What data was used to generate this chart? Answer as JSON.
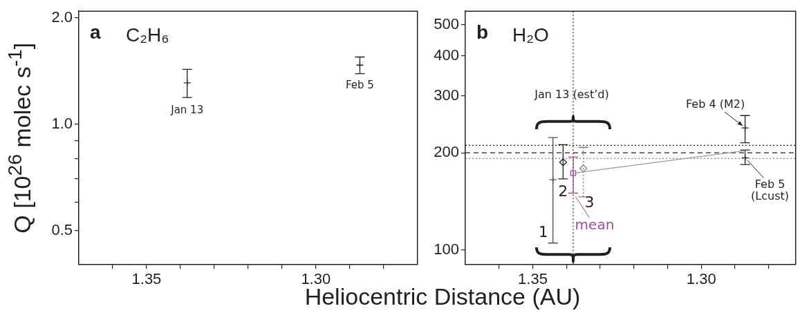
{
  "chart_data": [
    {
      "type": "scatter",
      "title": "a",
      "subtitle": "C₂H₆",
      "xlabel": "Heliocentric Distance (AU)",
      "ylabel": "Q [10$^{26}$ molec s$^{-1}$]",
      "log": "y",
      "grid": false,
      "legend": false,
      "marker": "cross",
      "xlim": [
        1.37,
        1.27
      ],
      "xticks": [
        {
          "value": 1.36,
          "label": null
        },
        {
          "value": 1.35,
          "label": "1.35"
        },
        {
          "value": 1.34,
          "label": null
        },
        {
          "value": 1.33,
          "label": null
        },
        {
          "value": 1.32,
          "label": null
        },
        {
          "value": 1.31,
          "label": null
        },
        {
          "value": 1.3,
          "label": "1.30"
        },
        {
          "value": 1.29,
          "label": null
        },
        {
          "value": 1.28,
          "label": null
        }
      ],
      "ylim": [
        0.4,
        2.09
      ],
      "yticks": [
        {
          "value": 0.5,
          "label": "0.5"
        },
        {
          "value": 0.6,
          "label": null
        },
        {
          "value": 0.7,
          "label": null
        },
        {
          "value": 0.8,
          "label": null
        },
        {
          "value": 0.9,
          "label": null
        },
        {
          "value": 1,
          "label": "1.0"
        },
        {
          "value": 2,
          "label": "2.0"
        }
      ],
      "series": [
        {
          "color": "#231f20",
          "x": [
            1.338,
            1.287
          ],
          "values": [
            1.31,
            1.47
          ],
          "errors": [
            [
              1.19,
              1.43
            ],
            [
              1.39,
              1.55
            ]
          ]
        }
      ],
      "annotations": [
        {
          "text": "Jan 13",
          "x": 1.338,
          "y": 1.31
        },
        {
          "text": "Feb 5",
          "x": 1.287,
          "y": 1.47
        }
      ]
    },
    {
      "type": "scatter",
      "title": "b",
      "subtitle": "H₂O",
      "log": "y",
      "grid": false,
      "legend": false,
      "xlim": [
        1.37,
        1.272
      ],
      "xticks": [
        {
          "value": 1.36,
          "label": null
        },
        {
          "value": 1.35,
          "label": "1.35"
        },
        {
          "value": 1.34,
          "label": null
        },
        {
          "value": 1.33,
          "label": null
        },
        {
          "value": 1.32,
          "label": null
        },
        {
          "value": 1.31,
          "label": null
        },
        {
          "value": 1.3,
          "label": "1.30"
        },
        {
          "value": 1.29,
          "label": null
        },
        {
          "value": 1.28,
          "label": null
        }
      ],
      "ylim": [
        90,
        550
      ],
      "yticks": [
        100,
        200,
        300,
        400,
        500
      ],
      "series": [
        {
          "type": "line",
          "color": "#999999",
          "marker": "none",
          "x": [
            1.338,
            1.287
          ],
          "values": [
            173,
            203
          ]
        },
        {
          "color": "#4d4d4d",
          "marker": "cross",
          "x": [
            1.344
          ],
          "values": [
            165
          ],
          "errors": [
            [
              105,
              223
            ]
          ]
        },
        {
          "color": "#231f20",
          "marker": "diamond",
          "x": [
            1.341
          ],
          "values": [
            187
          ],
          "errors": [
            [
              166,
              212
            ]
          ]
        },
        {
          "color": "#808080",
          "marker": "diamond",
          "line_style": "dotted",
          "x": [
            1.335
          ],
          "values": [
            179
          ],
          "errors": [
            [
              146,
              208
            ]
          ]
        },
        {
          "color": "#9b4f9f",
          "marker": "square",
          "x": [
            1.338
          ],
          "values": [
            173
          ],
          "errors": [
            [
              150,
              194
            ]
          ]
        },
        {
          "color": "#231f20",
          "marker": "cross",
          "x": [
            1.287
          ],
          "values": [
            239
          ],
          "errors": [
            [
              215,
              261
            ]
          ]
        },
        {
          "color": "#231f20",
          "marker": "cross",
          "x": [
            1.287
          ],
          "values": [
            193
          ],
          "errors": [
            [
              184,
              204
            ]
          ]
        }
      ],
      "ref_lines": [
        {
          "axis": "x",
          "value": 1.338,
          "color": "#231f20",
          "line_style": "dotted"
        },
        {
          "axis": "y",
          "value": 211,
          "color": "#231f20",
          "line_style": "dotted"
        },
        {
          "axis": "y",
          "value": 200,
          "color": "#231f20",
          "line_style": "dashed"
        },
        {
          "axis": "y",
          "value": 192,
          "color": "#808080",
          "line_style": "dotted"
        }
      ],
      "annotations": [
        "Jan 13 (est’d)",
        {
          "text": "Feb 4 (M2)",
          "x": 1.287,
          "y": 239
        },
        {
          "text": "Feb 5",
          "x": 1.287,
          "y": 193
        },
        {
          "text": "(Lcust)",
          "x": 1.287,
          "y": 193
        },
        {
          "text": "1",
          "x": 1.344,
          "y": 165
        },
        {
          "text": "2",
          "x": 1.341,
          "y": 187
        },
        {
          "text": "3",
          "x": 1.335,
          "y": 179
        },
        {
          "text": "mean",
          "x": 1.338,
          "y": 150
        }
      ]
    }
  ]
}
